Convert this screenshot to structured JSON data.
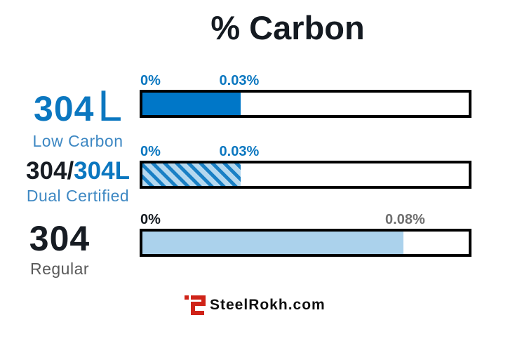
{
  "title": "% Carbon",
  "colors": {
    "primary_blue": "#0077c8",
    "light_blue": "#abd2ec",
    "hatch_stripe_blue": "#1a80c5",
    "hatch_base_blue": "#b5d8ef",
    "label_blue": "#3e88c3",
    "dark_text": "#14191f",
    "gray_text": "#6f6f6f",
    "bar_border": "#000000",
    "logo_red": "#cf2318"
  },
  "chart_data": {
    "type": "bar",
    "orientation": "horizontal",
    "title": "% Carbon",
    "value_unit": "%",
    "axis_range": [
      0,
      0.1
    ],
    "rows": [
      {
        "grade": "304L",
        "grade_num": "304",
        "grade_suffix": "L",
        "subtitle": "Low Carbon",
        "min_label": "0%",
        "max_label": "0.03%",
        "value": 0.03,
        "fill": "solid-blue"
      },
      {
        "grade": "304/304L",
        "grade_dark": "304/",
        "grade_blue": "304L",
        "subtitle": "Dual Certified",
        "min_label": "0%",
        "max_label": "0.03%",
        "value": 0.03,
        "fill": "blue-hatched"
      },
      {
        "grade": "304",
        "grade_num": "304",
        "subtitle": "Regular",
        "min_label": "0%",
        "max_label": "0.08%",
        "value": 0.08,
        "fill": "light-blue"
      }
    ]
  },
  "footer": {
    "brand": "SteelRokh.com",
    "logo_icon": "steelrokh-logo"
  }
}
